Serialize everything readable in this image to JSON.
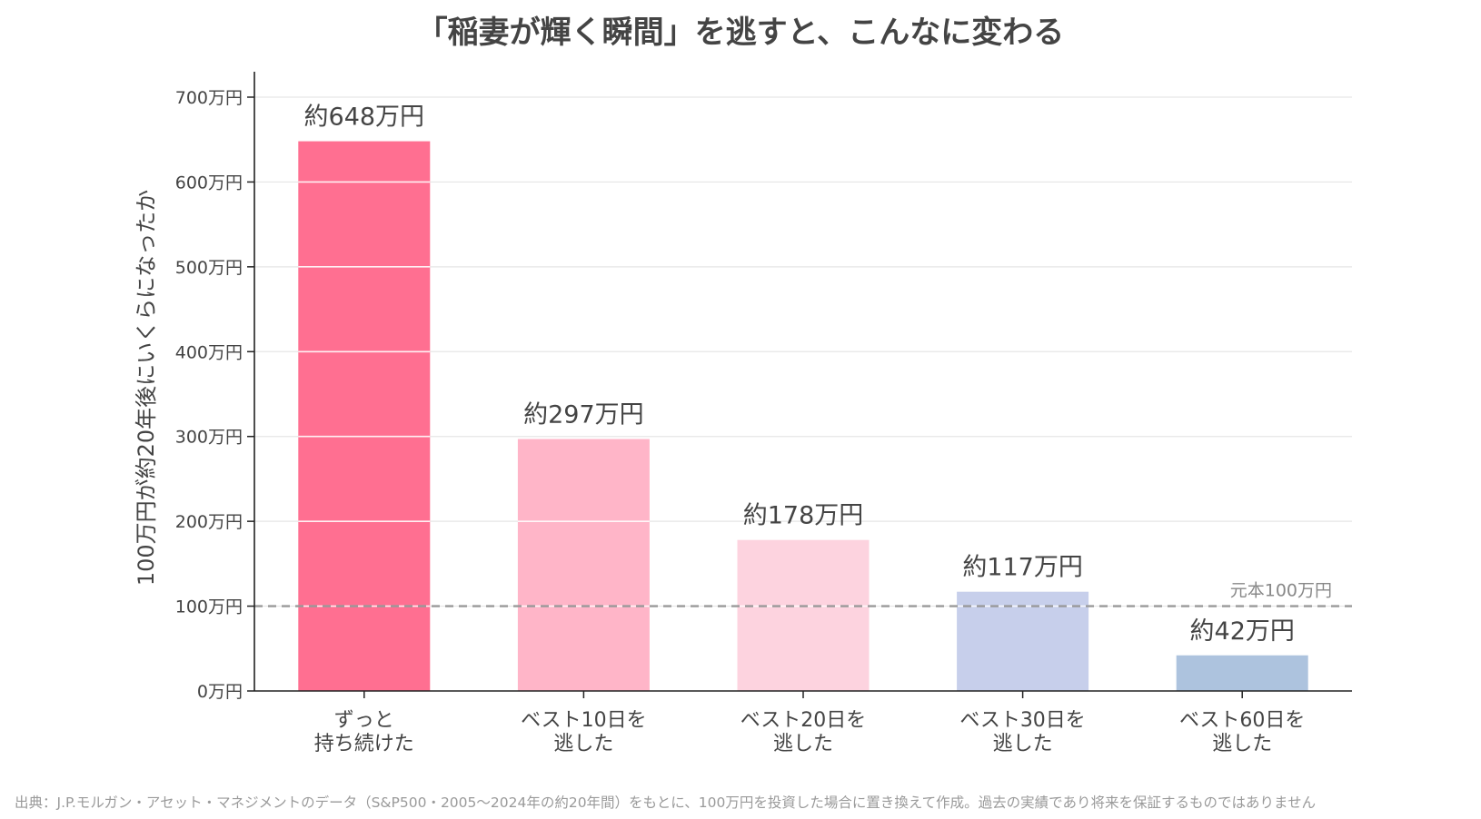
{
  "chart_data": {
    "type": "bar",
    "title": "「稲妻が輝く瞬間」を逃すと、こんなに変わる",
    "ylabel": "100万円が約20年後にいくらになったか",
    "xlabel": "",
    "ylim": [
      0,
      730
    ],
    "y_ticks": [
      0,
      100,
      200,
      300,
      400,
      500,
      600,
      700
    ],
    "y_tick_labels": [
      "0万円",
      "100万円",
      "200万円",
      "300万円",
      "400万円",
      "500万円",
      "600万円",
      "700万円"
    ],
    "grid": "horizontal",
    "categories": [
      [
        "ずっと",
        "持ち続けた"
      ],
      [
        "ベスト10日を",
        "逃した"
      ],
      [
        "ベスト20日を",
        "逃した"
      ],
      [
        "ベスト30日を",
        "逃した"
      ],
      [
        "ベスト60日を",
        "逃した"
      ]
    ],
    "values": [
      648,
      297,
      178,
      117,
      42
    ],
    "value_labels": [
      "約648万円",
      "約297万円",
      "約178万円",
      "約117万円",
      "約42万円"
    ],
    "bar_colors": [
      "#ff6f91",
      "#ffb5c8",
      "#fdd3df",
      "#c7cfeb",
      "#adc3de"
    ],
    "reference_line": {
      "value": 100,
      "label": "元本100万円",
      "style": "dashed",
      "color": "#999999"
    }
  },
  "source_note": "出典：J.P.モルガン・アセット・マネジメントのデータ（S&P500・2005〜2024年の約20年間）をもとに、100万円を投資した場合に置き換えて作成。過去の実績であり将来を保証するものではありません"
}
